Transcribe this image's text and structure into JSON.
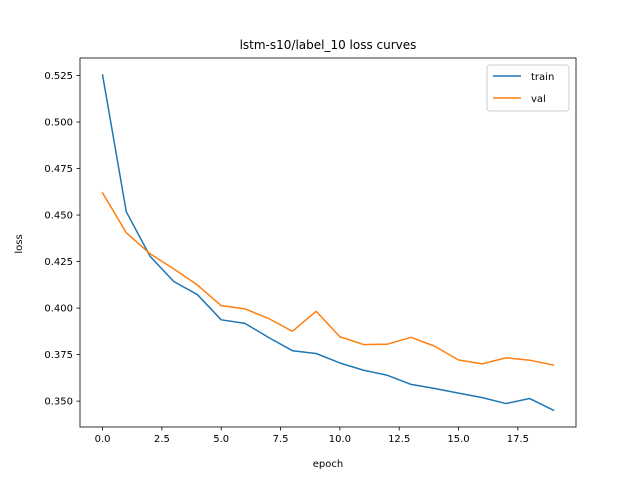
{
  "chart_data": {
    "type": "line",
    "title": "lstm-s10/label_10 loss curves",
    "xlabel": "epoch",
    "ylabel": "loss",
    "xlim": [
      -0.95,
      19.95
    ],
    "ylim": [
      0.3361,
      0.5344
    ],
    "xticks": [
      0,
      2.5,
      5,
      7.5,
      10,
      12.5,
      15,
      17.5
    ],
    "xtick_labels": [
      "0.0",
      "2.5",
      "5.0",
      "7.5",
      "10.0",
      "12.5",
      "15.0",
      "17.5"
    ],
    "yticks": [
      0.35,
      0.375,
      0.4,
      0.425,
      0.45,
      0.475,
      0.5,
      0.525
    ],
    "ytick_labels": [
      "0.350",
      "0.375",
      "0.400",
      "0.425",
      "0.450",
      "0.475",
      "0.500",
      "0.525"
    ],
    "x": [
      0,
      1,
      2,
      3,
      4,
      5,
      6,
      7,
      8,
      9,
      10,
      11,
      12,
      13,
      14,
      15,
      16,
      17,
      18,
      19
    ],
    "series": [
      {
        "name": "train",
        "color": "#1f77b4",
        "values": [
          0.5253,
          0.4518,
          0.4279,
          0.4143,
          0.4072,
          0.3937,
          0.3918,
          0.3842,
          0.3771,
          0.3756,
          0.3705,
          0.3666,
          0.3639,
          0.359,
          0.3568,
          0.3543,
          0.3519,
          0.3487,
          0.3514,
          0.3451
        ]
      },
      {
        "name": "val",
        "color": "#ff7f0e",
        "values": [
          0.4619,
          0.4405,
          0.4292,
          0.4211,
          0.4124,
          0.4013,
          0.3996,
          0.3944,
          0.3875,
          0.3983,
          0.3846,
          0.3804,
          0.3806,
          0.3843,
          0.3795,
          0.3721,
          0.37,
          0.3733,
          0.372,
          0.3694
        ]
      }
    ],
    "grid": false,
    "legend_position": "top-right"
  }
}
